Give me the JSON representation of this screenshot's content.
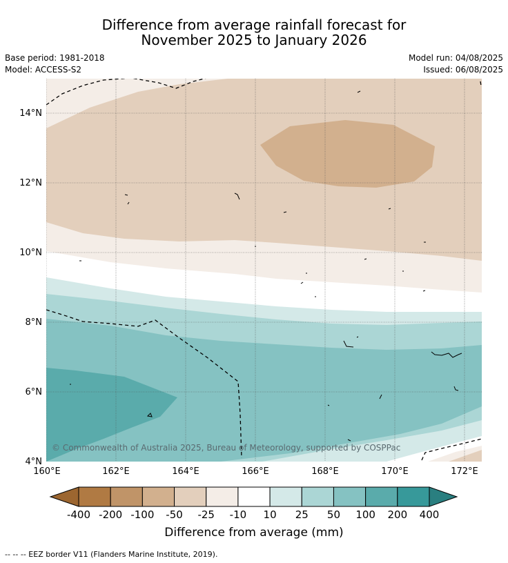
{
  "header": {
    "title_line1": "Difference from average rainfall forecast for",
    "title_line2": "November 2025 to January 2026",
    "base_period": "Base period: 1981-2018",
    "model": "Model: ACCESS-S2",
    "model_run": "Model run: 04/08/2025",
    "issued": "Issued: 06/08/2025"
  },
  "map": {
    "lon_ticks": [
      "160°E",
      "162°E",
      "164°E",
      "166°E",
      "168°E",
      "170°E",
      "172°E"
    ],
    "lat_ticks": [
      "14°N",
      "12°N",
      "10°N",
      "8°N",
      "6°N",
      "4°N"
    ],
    "watermark": "© Commonwealth of Australia 2025, Bureau of Meteorology, supported by COSPPac"
  },
  "colorbar": {
    "labels": [
      "-400",
      "-200",
      "-100",
      "-50",
      "-25",
      "-10",
      "10",
      "25",
      "50",
      "100",
      "200",
      "400"
    ],
    "colors": [
      "#9c6630",
      "#b07a43",
      "#c09468",
      "#d2b08e",
      "#e3cfbc",
      "#f4ede7",
      "#ffffff",
      "#d4e9e8",
      "#abd6d5",
      "#85c2c2",
      "#5aabab",
      "#37999a",
      "#2a7f80"
    ],
    "title": "Difference from average (mm)"
  },
  "footnote": "--  --  -- EEZ border V11 (Flanders Marine Institute, 2019)."
}
